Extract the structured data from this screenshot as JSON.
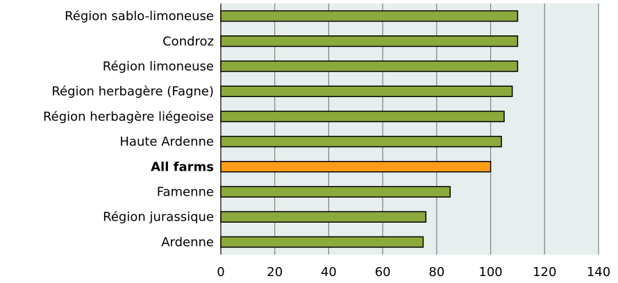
{
  "chart_data": {
    "type": "bar",
    "orientation": "horizontal",
    "title": "",
    "xlabel": "",
    "ylabel": "",
    "categories": [
      "Région sablo-limoneuse",
      "Condroz",
      "Région limoneuse",
      "Région herbagère (Fagne)",
      "Région herbagère liégeoise",
      "Haute Ardenne",
      "All farms",
      "Famenne",
      "Région jurassique",
      "Ardenne"
    ],
    "values": [
      110,
      110,
      110,
      108,
      105,
      104,
      100,
      85,
      76,
      75
    ],
    "highlight_category": "All farms",
    "xlim": [
      0,
      140
    ],
    "xticks": [
      "0",
      "20",
      "40",
      "60",
      "80",
      "100",
      "120",
      "140"
    ],
    "grid": "vertical",
    "colors": {
      "bar": "#8caa3c",
      "highlight": "#ff9e16",
      "plot_background": "#e6eeee",
      "gridline": "#808080",
      "bar_edge": "#000000"
    }
  }
}
